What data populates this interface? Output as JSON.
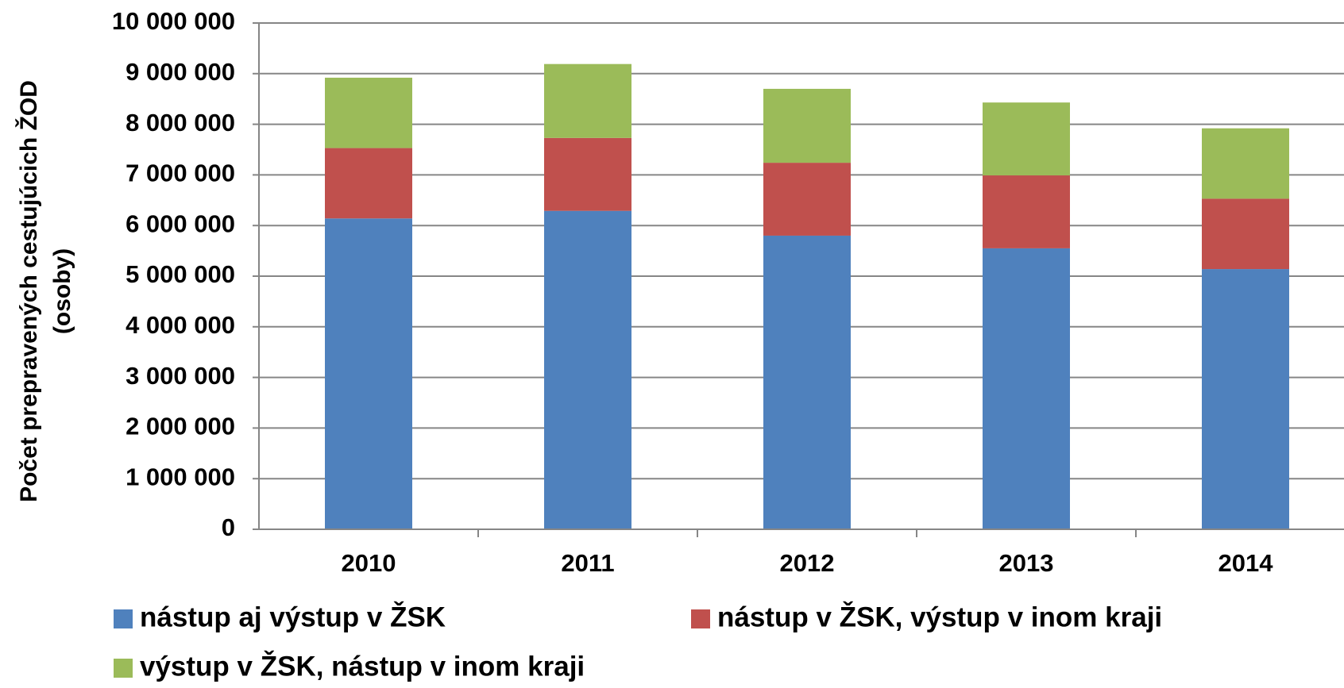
{
  "chart_data": {
    "type": "stacked_bar",
    "y_label": [
      "Počet prepravených cestujúcich ŽOD",
      "(osoby)"
    ],
    "categories": [
      "2010",
      "2011",
      "2012",
      "2013",
      "2014"
    ],
    "series": [
      {
        "name": "nástup aj výstup v ŽSK",
        "color": "#4f81bd",
        "values": [
          6140000,
          6290000,
          5800000,
          5550000,
          5140000
        ]
      },
      {
        "name": "nástup v ŽSK, výstup v inom kraji",
        "color": "#c0504d",
        "values": [
          1390000,
          1440000,
          1440000,
          1440000,
          1390000
        ]
      },
      {
        "name": "výstup v ŽSK, nástup v inom kraji",
        "color": "#9bbb59",
        "values": [
          1390000,
          1460000,
          1460000,
          1440000,
          1390000
        ]
      }
    ],
    "ylim": [
      0,
      10000000
    ],
    "yticks": [
      0,
      {
        "value": 1000000,
        "label": "1 000 000"
      },
      {
        "value": 2000000,
        "label": "2 000 000"
      },
      {
        "value": 3000000,
        "label": "3 000 000"
      },
      {
        "value": 4000000,
        "label": "4 000 000"
      },
      {
        "value": 5000000,
        "label": "5 000 000"
      },
      {
        "value": 6000000,
        "label": "6 000 000"
      },
      {
        "value": 7000000,
        "label": "7 000 000"
      },
      {
        "value": 8000000,
        "label": "8 000 000"
      },
      {
        "value": 9000000,
        "label": "9 000 000"
      },
      {
        "value": 10000000,
        "label": "10 000 000"
      }
    ],
    "grid": true
  }
}
